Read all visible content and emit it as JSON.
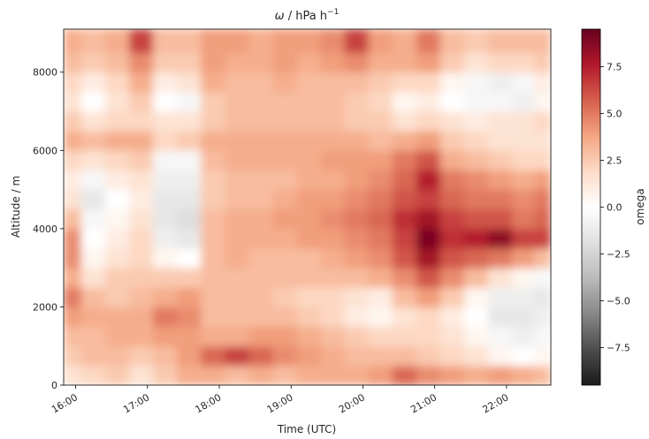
{
  "chart_data": {
    "type": "heatmap",
    "title": "ω / hPa h⁻¹",
    "title_symbol": "ω",
    "title_units": " / hPa h",
    "title_exponent": "−1",
    "xlabel": "Time (UTC)",
    "ylabel": "Altitude / m",
    "colorbar_label": "omega",
    "colormap": "RdGy_r",
    "x_start": "15:50",
    "x_end": "22:37",
    "x_tick_labels": [
      "16:00",
      "17:00",
      "18:00",
      "19:00",
      "20:00",
      "21:00",
      "22:00"
    ],
    "x_tick_minutes": [
      0,
      60,
      120,
      180,
      240,
      300,
      360
    ],
    "xlim_minutes_after_16": [
      -10,
      397
    ],
    "ylim": [
      0,
      9100
    ],
    "y_ticks": [
      0,
      2000,
      4000,
      6000,
      8000
    ],
    "y_tick_labels": [
      "0",
      "2000",
      "4000",
      "6000",
      "8000"
    ],
    "clim": [
      -9.5,
      9.5
    ],
    "colorbar_ticks": [
      -7.5,
      -5.0,
      -2.5,
      0.0,
      2.5,
      5.0,
      7.5
    ],
    "colorbar_tick_labels": [
      "−7.5",
      "−5.0",
      "−2.5",
      "0.0",
      "2.5",
      "5.0",
      "7.5"
    ],
    "altitudes_m": [
      250,
      750,
      1250,
      1750,
      2250,
      2750,
      3250,
      3750,
      4250,
      4750,
      5250,
      5750,
      6250,
      6750,
      7250,
      7750,
      8250,
      8750
    ],
    "times_utc": [
      "15:55",
      "16:15",
      "16:35",
      "16:55",
      "17:15",
      "17:35",
      "17:55",
      "18:15",
      "18:35",
      "18:55",
      "19:15",
      "19:35",
      "19:55",
      "20:15",
      "20:35",
      "20:55",
      "21:15",
      "21:35",
      "21:55",
      "22:15",
      "22:32"
    ],
    "values": [
      [
        1.5,
        2.0,
        2.5,
        1.5,
        2.5,
        3.5,
        3.5,
        3.0,
        3.5,
        3.0,
        3.5,
        3.5,
        3.5,
        4.0,
        5.5,
        4.5,
        4.0,
        3.5,
        4.0,
        3.5,
        3.0
      ],
      [
        2.5,
        3.0,
        3.0,
        2.5,
        3.0,
        4.0,
        5.5,
        6.5,
        5.5,
        4.5,
        4.0,
        3.5,
        3.0,
        3.0,
        3.0,
        2.5,
        2.0,
        1.5,
        0.5,
        0.0,
        0.5
      ],
      [
        3.0,
        3.0,
        3.5,
        3.5,
        4.0,
        4.0,
        3.5,
        3.5,
        4.0,
        4.0,
        3.5,
        3.0,
        2.5,
        2.0,
        2.0,
        2.0,
        1.5,
        0.5,
        -0.5,
        -1.0,
        -0.5
      ],
      [
        4.0,
        3.5,
        3.5,
        3.5,
        5.0,
        4.5,
        3.0,
        3.0,
        3.0,
        3.0,
        2.5,
        2.0,
        1.0,
        0.5,
        1.5,
        2.0,
        1.0,
        0.0,
        -1.5,
        -1.5,
        -1.0
      ],
      [
        5.0,
        3.0,
        2.5,
        3.0,
        3.5,
        4.0,
        3.0,
        3.0,
        3.0,
        2.5,
        2.0,
        2.0,
        1.5,
        1.0,
        3.0,
        4.0,
        2.5,
        0.5,
        -1.0,
        -1.0,
        -1.5
      ],
      [
        3.5,
        1.5,
        2.5,
        2.5,
        2.5,
        2.5,
        3.0,
        3.0,
        3.0,
        3.0,
        3.0,
        3.0,
        3.0,
        3.5,
        4.5,
        6.0,
        4.5,
        3.0,
        1.5,
        0.5,
        -0.5
      ],
      [
        4.5,
        0.5,
        1.5,
        2.0,
        0.5,
        0.0,
        3.0,
        3.5,
        3.0,
        3.0,
        3.0,
        3.5,
        4.0,
        4.5,
        6.0,
        8.0,
        6.0,
        5.5,
        5.0,
        4.0,
        3.0
      ],
      [
        4.5,
        0.0,
        1.0,
        2.0,
        -1.0,
        -1.5,
        3.0,
        3.5,
        3.5,
        3.5,
        4.0,
        4.0,
        4.5,
        5.0,
        6.5,
        9.0,
        7.0,
        7.5,
        8.5,
        6.5,
        6.5
      ],
      [
        3.0,
        -0.5,
        0.5,
        1.5,
        -1.5,
        -2.0,
        3.0,
        3.5,
        3.5,
        4.0,
        4.0,
        4.5,
        5.0,
        5.5,
        7.0,
        8.0,
        6.5,
        6.0,
        6.0,
        5.0,
        5.5
      ],
      [
        1.5,
        -1.5,
        0.0,
        1.0,
        -1.5,
        -1.5,
        2.5,
        3.0,
        3.0,
        3.5,
        4.0,
        4.0,
        4.5,
        5.0,
        6.0,
        6.5,
        5.5,
        5.0,
        5.0,
        4.5,
        5.0
      ],
      [
        1.0,
        -0.5,
        1.0,
        1.5,
        -1.0,
        -1.0,
        2.5,
        3.0,
        3.0,
        3.0,
        3.5,
        3.5,
        4.0,
        4.5,
        5.5,
        7.5,
        5.0,
        4.5,
        4.0,
        3.5,
        4.0
      ],
      [
        2.0,
        1.5,
        2.0,
        2.5,
        -0.5,
        -0.5,
        3.0,
        3.5,
        3.5,
        3.5,
        3.5,
        4.0,
        4.0,
        4.0,
        5.0,
        6.0,
        3.5,
        3.0,
        2.5,
        2.0,
        2.0
      ],
      [
        3.5,
        3.0,
        3.5,
        3.5,
        2.0,
        2.5,
        3.5,
        3.5,
        3.5,
        3.5,
        3.5,
        3.5,
        3.5,
        3.0,
        3.5,
        4.0,
        2.5,
        2.0,
        1.5,
        1.5,
        1.5
      ],
      [
        2.5,
        1.5,
        2.0,
        2.0,
        1.5,
        1.5,
        2.5,
        3.0,
        3.0,
        3.0,
        3.0,
        3.0,
        2.5,
        2.5,
        1.5,
        2.0,
        1.5,
        1.0,
        1.5,
        1.5,
        2.0
      ],
      [
        1.5,
        0.0,
        1.5,
        2.5,
        0.0,
        -0.5,
        2.5,
        3.0,
        3.0,
        3.0,
        3.0,
        3.0,
        2.5,
        2.0,
        0.5,
        1.0,
        0.0,
        -0.5,
        -0.5,
        -1.0,
        0.5
      ],
      [
        2.0,
        1.0,
        2.0,
        3.5,
        1.0,
        1.5,
        3.5,
        3.0,
        3.0,
        3.5,
        3.0,
        3.0,
        3.0,
        2.5,
        2.0,
        2.0,
        0.5,
        -0.5,
        -1.0,
        -0.5,
        1.0
      ],
      [
        3.0,
        2.5,
        3.0,
        4.5,
        2.5,
        2.5,
        4.0,
        3.5,
        3.5,
        4.0,
        3.5,
        4.0,
        4.5,
        3.5,
        3.5,
        4.0,
        2.5,
        1.5,
        2.0,
        2.0,
        2.5
      ],
      [
        3.5,
        3.0,
        3.5,
        6.5,
        3.0,
        3.0,
        4.0,
        4.0,
        3.5,
        4.0,
        4.0,
        4.5,
        6.5,
        4.0,
        3.5,
        5.0,
        3.0,
        2.5,
        3.0,
        3.0,
        3.0
      ]
    ]
  }
}
